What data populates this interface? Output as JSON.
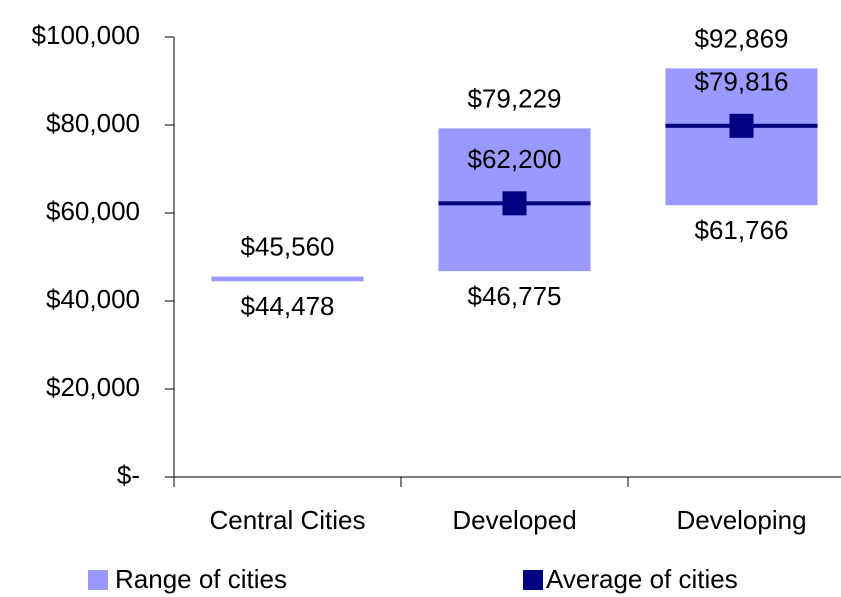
{
  "chart_data": {
    "type": "range",
    "categories": [
      "Central Cities",
      "Developed",
      "Developing"
    ],
    "series": [
      {
        "name": "Range of cities",
        "color": "#9999ff",
        "low": [
          44478,
          46775,
          61766
        ],
        "high": [
          45560,
          79229,
          92869
        ],
        "low_labels": [
          "$44,478",
          "$46,775",
          "$61,766"
        ],
        "high_labels": [
          "$45,560",
          "$79,229",
          "$92,869"
        ]
      },
      {
        "name": "Average of cities",
        "color": "#000080",
        "values": [
          null,
          62200,
          79816
        ],
        "value_labels": [
          null,
          "$62,200",
          "$79,816"
        ]
      }
    ],
    "ylim": [
      0,
      100000
    ],
    "yticks": [
      {
        "value": 0,
        "label": "$-"
      },
      {
        "value": 20000,
        "label": "$20,000"
      },
      {
        "value": 40000,
        "label": "$40,000"
      },
      {
        "value": 60000,
        "label": "$60,000"
      },
      {
        "value": 80000,
        "label": "$80,000"
      },
      {
        "value": 100000,
        "label": "$100,000"
      }
    ],
    "grid": false
  }
}
